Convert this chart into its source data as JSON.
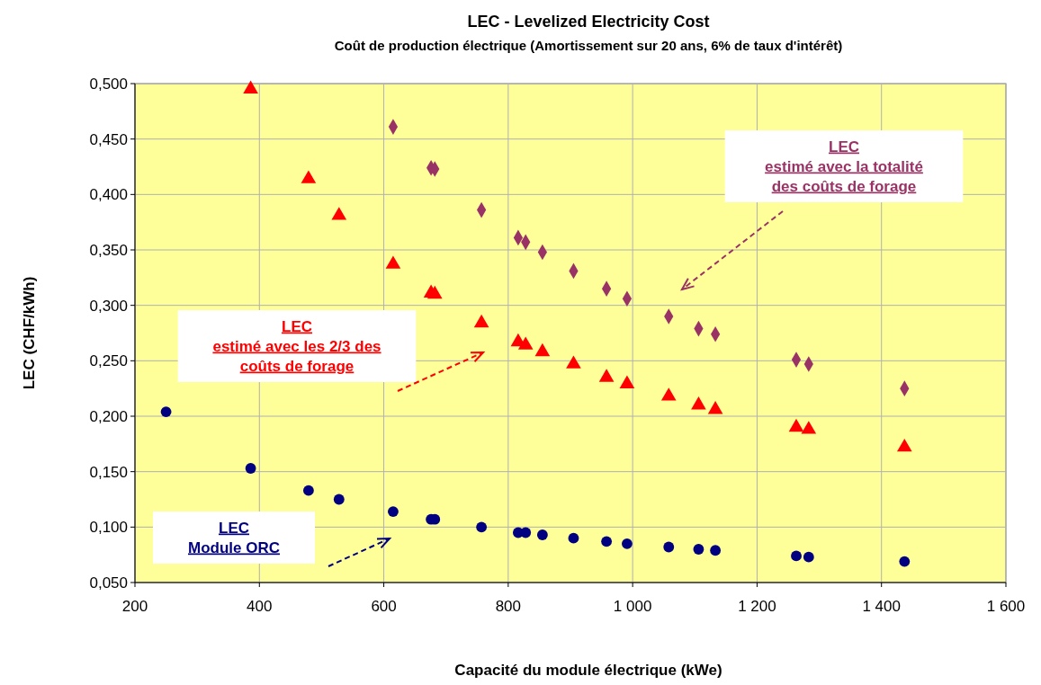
{
  "chart_data": {
    "type": "scatter",
    "title": "LEC - Levelized Electricity Cost",
    "subtitle": "Coût de production électrique (Amortissement sur 20 ans,  6% de taux d'intérêt)",
    "xlabel": "Capacité du module électrique (kWe)",
    "ylabel": "LEC (CHF/kWh)",
    "xlim": [
      200,
      1600
    ],
    "xticks": [
      {
        "value": 200,
        "label": "200"
      },
      {
        "value": 400,
        "label": "400"
      },
      {
        "value": 600,
        "label": "600"
      },
      {
        "value": 800,
        "label": "800"
      },
      {
        "value": 1000,
        "label": "1 000"
      },
      {
        "value": 1200,
        "label": "1 200"
      },
      {
        "value": 1400,
        "label": "1 400"
      },
      {
        "value": 1600,
        "label": "1 600"
      }
    ],
    "ylim": [
      0.05,
      0.5
    ],
    "yticks": [
      {
        "value": 0.05,
        "label": "0,050"
      },
      {
        "value": 0.1,
        "label": "0,100"
      },
      {
        "value": 0.15,
        "label": "0,150"
      },
      {
        "value": 0.2,
        "label": "0,200"
      },
      {
        "value": 0.25,
        "label": "0,250"
      },
      {
        "value": 0.3,
        "label": "0,300"
      },
      {
        "value": 0.35,
        "label": "0,350"
      },
      {
        "value": 0.4,
        "label": "0,400"
      },
      {
        "value": 0.45,
        "label": "0,450"
      },
      {
        "value": 0.5,
        "label": "0,500"
      }
    ],
    "grid": true,
    "series": [
      {
        "color": "#000080",
        "marker": "circle",
        "x": [
          250,
          386,
          479,
          528,
          615,
          676,
          682,
          757,
          816,
          828,
          855,
          905,
          958,
          991,
          1058,
          1106,
          1133,
          1263,
          1283,
          1437
        ],
        "values": [
          0.204,
          0.153,
          0.133,
          0.125,
          0.114,
          0.107,
          0.107,
          0.1,
          0.095,
          0.095,
          0.093,
          0.09,
          0.087,
          0.085,
          0.082,
          0.08,
          0.079,
          0.074,
          0.073,
          0.069
        ]
      },
      {
        "color": "#ff0000",
        "marker": "triangle",
        "x": [
          386,
          479,
          528,
          615,
          676,
          682,
          757,
          816,
          828,
          855,
          905,
          958,
          991,
          1058,
          1106,
          1133,
          1263,
          1283,
          1437
        ],
        "values": [
          0.495,
          0.414,
          0.381,
          0.337,
          0.311,
          0.31,
          0.284,
          0.267,
          0.264,
          0.258,
          0.247,
          0.235,
          0.229,
          0.218,
          0.21,
          0.206,
          0.19,
          0.188,
          0.172
        ]
      },
      {
        "color": "#993366",
        "marker": "diamond",
        "x": [
          615,
          676,
          682,
          757,
          816,
          828,
          855,
          905,
          958,
          991,
          1058,
          1106,
          1133,
          1263,
          1283,
          1437
        ],
        "values": [
          0.461,
          0.424,
          0.423,
          0.386,
          0.361,
          0.357,
          0.348,
          0.331,
          0.315,
          0.306,
          0.29,
          0.279,
          0.274,
          0.251,
          0.247,
          0.225
        ]
      }
    ],
    "annotations": [
      "LEC\nModule ORC",
      "LEC\nestimé avec les 2/3 des\ncoûts de forage",
      "LEC\nestimé avec la totalité\ndes coûts de forage"
    ]
  }
}
